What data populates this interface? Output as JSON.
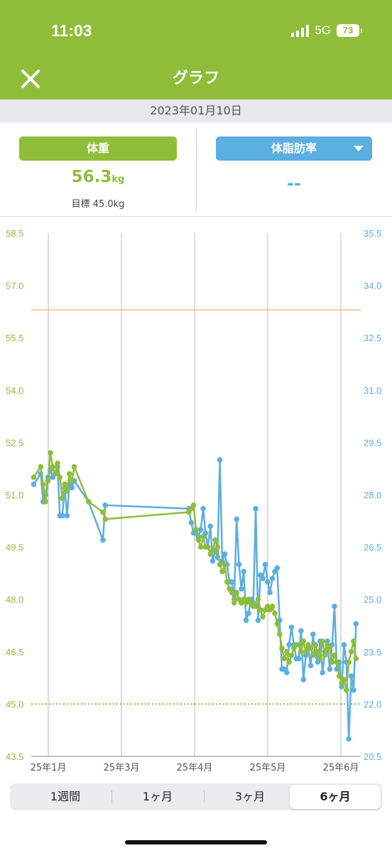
{
  "status_bar": {
    "time": "11:03",
    "network": "5G",
    "battery": "73"
  },
  "header": {
    "title": "グラフ",
    "close_icon": "close-icon"
  },
  "date_bar": {
    "date": "2023年01月10日"
  },
  "summary": {
    "weight": {
      "label": "体重",
      "value": "56.3",
      "unit": "kg",
      "goal": "目標 45.0kg"
    },
    "body_fat": {
      "label": "体脂肪率",
      "value": "--"
    }
  },
  "colors": {
    "brand_green": "#8fbd3a",
    "fat_blue": "#5baee0",
    "reference_orange": "#f2c08a",
    "goal_green": "#8fbd3a"
  },
  "range_tabs": {
    "items": [
      "1週間",
      "1ヶ月",
      "3ヶ月",
      "6ヶ月"
    ],
    "selected": "6ヶ月"
  },
  "chart_data": {
    "type": "line",
    "x_tick_labels": [
      "25年1月",
      "25年3月",
      "25年4月",
      "25年5月",
      "25年6月"
    ],
    "y_left": {
      "label": "",
      "ticks": [
        "58.5",
        "57.0",
        "55.5",
        "54.0",
        "52.5",
        "51.0",
        "49.5",
        "48.0",
        "46.5",
        "45.0",
        "43.5"
      ],
      "ylim": [
        43.5,
        58.5
      ]
    },
    "y_right": {
      "label": "",
      "ticks": [
        "35.5",
        "34.0",
        "32.5",
        "31.0",
        "29.5",
        "28.0",
        "26.5",
        "25.0",
        "23.5",
        "22.0",
        "20.5"
      ],
      "ylim": [
        20.5,
        35.5
      ]
    },
    "reference_line": 56.3,
    "goal_line": 45.0,
    "grid": "vertical",
    "series": [
      {
        "axis": "left",
        "color": "#8fbd3a",
        "points": [
          [
            -5,
            51.5
          ],
          [
            -2,
            51.8
          ],
          [
            -1,
            51.3
          ],
          [
            0,
            50.8
          ],
          [
            1,
            51.4
          ],
          [
            2,
            52.2
          ],
          [
            3,
            51.8
          ],
          [
            4,
            51.6
          ],
          [
            5,
            51.9
          ],
          [
            6,
            51.5
          ],
          [
            7,
            50.9
          ],
          [
            8,
            51.3
          ],
          [
            9,
            51.1
          ],
          [
            10,
            51.6
          ],
          [
            11,
            51.4
          ],
          [
            12,
            51.8
          ],
          [
            18,
            50.8
          ],
          [
            24,
            50.5
          ],
          [
            25,
            50.3
          ],
          [
            60,
            50.5
          ],
          [
            61,
            50.6
          ],
          [
            62,
            50.7
          ],
          [
            63,
            50.0
          ],
          [
            64,
            49.7
          ],
          [
            65,
            49.5
          ],
          [
            66,
            49.8
          ],
          [
            67,
            49.5
          ],
          [
            68,
            49.5
          ],
          [
            69,
            49.3
          ],
          [
            70,
            49.4
          ],
          [
            71,
            49.7
          ],
          [
            72,
            49.5
          ],
          [
            73,
            49.0
          ],
          [
            74,
            48.8
          ],
          [
            75,
            49.0
          ],
          [
            76,
            48.5
          ],
          [
            77,
            48.3
          ],
          [
            78,
            48.2
          ],
          [
            79,
            47.9
          ],
          [
            80,
            48.2
          ],
          [
            81,
            48.0
          ],
          [
            82,
            47.9
          ],
          [
            83,
            48.0
          ],
          [
            84,
            47.9
          ],
          [
            85,
            48.0
          ],
          [
            86,
            47.9
          ],
          [
            87,
            47.8
          ],
          [
            88,
            47.8
          ],
          [
            89,
            48.0
          ],
          [
            90,
            47.7
          ],
          [
            91,
            47.5
          ],
          [
            92,
            47.7
          ],
          [
            93,
            47.8
          ],
          [
            94,
            47.7
          ],
          [
            95,
            47.8
          ],
          [
            96,
            47.6
          ],
          [
            97,
            47.3
          ],
          [
            98,
            47.0
          ],
          [
            99,
            46.6
          ],
          [
            100,
            46.3
          ],
          [
            101,
            46.5
          ],
          [
            102,
            46.2
          ],
          [
            103,
            46.4
          ],
          [
            104,
            46.6
          ],
          [
            105,
            46.7
          ],
          [
            106,
            46.7
          ],
          [
            107,
            46.5
          ],
          [
            108,
            46.8
          ],
          [
            109,
            46.5
          ],
          [
            110,
            46.7
          ],
          [
            111,
            46.6
          ],
          [
            112,
            46.4
          ],
          [
            113,
            46.7
          ],
          [
            114,
            46.5
          ],
          [
            115,
            46.3
          ],
          [
            116,
            46.8
          ],
          [
            117,
            46.4
          ],
          [
            118,
            46.7
          ],
          [
            119,
            46.6
          ],
          [
            120,
            46.2
          ],
          [
            121,
            46.4
          ],
          [
            122,
            46.2
          ],
          [
            123,
            45.8
          ],
          [
            124,
            45.6
          ],
          [
            125,
            45.7
          ],
          [
            126,
            45.4
          ],
          [
            127,
            46.2
          ],
          [
            128,
            46.5
          ],
          [
            129,
            46.8
          ],
          [
            130,
            46.3
          ]
        ]
      },
      {
        "axis": "right",
        "color": "#5baee0",
        "points": [
          [
            -5,
            28.3
          ],
          [
            -2,
            28.6
          ],
          [
            -1,
            27.8
          ],
          [
            0,
            28.0
          ],
          [
            1,
            28.5
          ],
          [
            2,
            28.7
          ],
          [
            3,
            28.5
          ],
          [
            4,
            28.6
          ],
          [
            5,
            28.8
          ],
          [
            6,
            27.4
          ],
          [
            7,
            27.4
          ],
          [
            8,
            28.2
          ],
          [
            9,
            27.4
          ],
          [
            10,
            28.3
          ],
          [
            11,
            28.2
          ],
          [
            12,
            28.4
          ],
          [
            18,
            27.8
          ],
          [
            24,
            26.7
          ],
          [
            25,
            27.7
          ],
          [
            60,
            27.6
          ],
          [
            61,
            27.2
          ],
          [
            62,
            26.9
          ],
          [
            63,
            26.9
          ],
          [
            64,
            26.8
          ],
          [
            65,
            27.0
          ],
          [
            66,
            27.6
          ],
          [
            67,
            26.9
          ],
          [
            68,
            26.5
          ],
          [
            69,
            27.1
          ],
          [
            70,
            26.1
          ],
          [
            71,
            26.4
          ],
          [
            72,
            26.2
          ],
          [
            73,
            29.0
          ],
          [
            74,
            26.1
          ],
          [
            75,
            26.3
          ],
          [
            76,
            26.0
          ],
          [
            77,
            25.5
          ],
          [
            78,
            25.5
          ],
          [
            79,
            25.0
          ],
          [
            80,
            27.3
          ],
          [
            81,
            26.0
          ],
          [
            82,
            25.3
          ],
          [
            83,
            25.8
          ],
          [
            84,
            24.4
          ],
          [
            85,
            24.6
          ],
          [
            86,
            25.0
          ],
          [
            87,
            24.9
          ],
          [
            88,
            27.6
          ],
          [
            89,
            24.4
          ],
          [
            90,
            25.7
          ],
          [
            91,
            25.6
          ],
          [
            92,
            26.0
          ],
          [
            93,
            25.5
          ],
          [
            94,
            25.2
          ],
          [
            95,
            25.6
          ],
          [
            96,
            25.8
          ],
          [
            97,
            25.9
          ],
          [
            98,
            24.4
          ],
          [
            99,
            23.0
          ],
          [
            100,
            23.0
          ],
          [
            101,
            22.9
          ],
          [
            102,
            23.7
          ],
          [
            103,
            24.2
          ],
          [
            104,
            23.7
          ],
          [
            105,
            23.3
          ],
          [
            106,
            23.3
          ],
          [
            107,
            24.1
          ],
          [
            108,
            22.7
          ],
          [
            109,
            23.4
          ],
          [
            110,
            23.6
          ],
          [
            111,
            23.1
          ],
          [
            112,
            24.0
          ],
          [
            113,
            23.4
          ],
          [
            114,
            23.2
          ],
          [
            115,
            23.8
          ],
          [
            116,
            22.9
          ],
          [
            117,
            23.5
          ],
          [
            118,
            23.8
          ],
          [
            119,
            23.0
          ],
          [
            120,
            23.7
          ],
          [
            121,
            24.8
          ],
          [
            122,
            23.0
          ],
          [
            123,
            23.2
          ],
          [
            124,
            22.5
          ],
          [
            125,
            23.7
          ],
          [
            126,
            23.2
          ],
          [
            127,
            21.0
          ],
          [
            128,
            22.8
          ],
          [
            129,
            22.4
          ],
          [
            130,
            24.3
          ]
        ]
      }
    ]
  }
}
